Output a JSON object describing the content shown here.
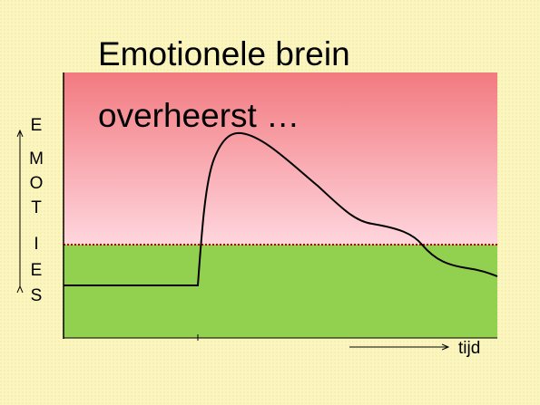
{
  "title": [
    "Emotionele brein",
    "overheerst …"
  ],
  "y_label": [
    "E",
    "M",
    "O",
    "T",
    "I",
    "E",
    "S"
  ],
  "x_label": "tijd"
}
